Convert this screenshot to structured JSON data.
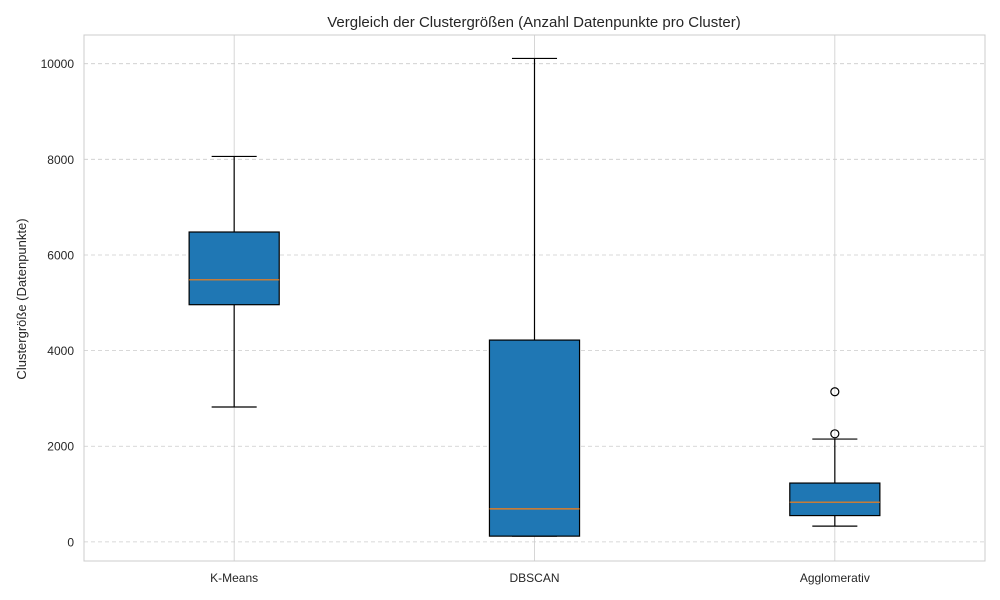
{
  "chart_data": {
    "type": "box",
    "title": "Vergleich der Clustergrößen (Anzahl Datenpunkte pro Cluster)",
    "xlabel": "",
    "ylabel": "Clustergröße (Datenpunkte)",
    "ylim": [
      -400,
      10600
    ],
    "yticks": [
      0,
      2000,
      4000,
      6000,
      8000,
      10000
    ],
    "ytick_labels": [
      "0",
      "2000",
      "4000",
      "6000",
      "8000",
      "10000"
    ],
    "grid": true,
    "categories": [
      "K-Means",
      "DBSCAN",
      "Agglomerativ"
    ],
    "boxes": [
      {
        "name": "K-Means",
        "whisker_low": 2820,
        "q1": 4960,
        "median": 5480,
        "q3": 6480,
        "whisker_high": 8060,
        "outliers": []
      },
      {
        "name": "DBSCAN",
        "whisker_low": 120,
        "q1": 120,
        "median": 690,
        "q3": 4220,
        "whisker_high": 10110,
        "outliers": []
      },
      {
        "name": "Agglomerativ",
        "whisker_low": 330,
        "q1": 550,
        "median": 830,
        "q3": 1230,
        "whisker_high": 2150,
        "outliers": [
          2260,
          3140
        ]
      }
    ],
    "colors": {
      "box_fill": "#1f77b4",
      "median": "#ff7f0e",
      "grid": "#cccccc"
    }
  }
}
